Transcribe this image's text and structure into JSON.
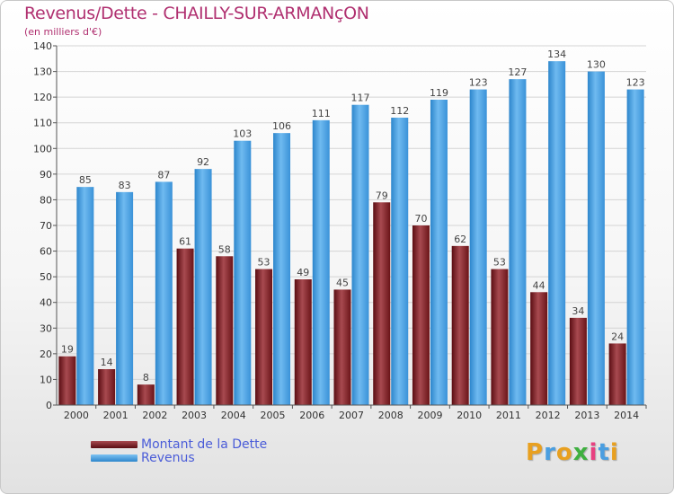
{
  "chart_data": {
    "type": "bar",
    "title": "Revenus/Dette - CHAILLY-SUR-ARMANçON",
    "subtitle": "(en milliers d'€)",
    "categories": [
      "2000",
      "2001",
      "2002",
      "2003",
      "2004",
      "2005",
      "2006",
      "2007",
      "2008",
      "2009",
      "2010",
      "2011",
      "2012",
      "2013",
      "2014"
    ],
    "series": [
      {
        "name": "Montant de la Dette",
        "color": "#7a1c22",
        "values": [
          19,
          14,
          8,
          61,
          58,
          53,
          49,
          45,
          79,
          70,
          62,
          53,
          44,
          34,
          24
        ]
      },
      {
        "name": "Revenus",
        "color": "#4aa3e6",
        "values": [
          85,
          83,
          87,
          92,
          103,
          106,
          111,
          117,
          112,
          119,
          123,
          127,
          134,
          130,
          123
        ]
      }
    ],
    "yticks": [
      0,
      10,
      20,
      30,
      40,
      50,
      60,
      70,
      80,
      90,
      100,
      110,
      120,
      130,
      140
    ],
    "ylim": [
      0,
      140
    ],
    "grid": true,
    "legend_position": "bottom-left"
  },
  "brand": {
    "text": "Proxiti"
  }
}
